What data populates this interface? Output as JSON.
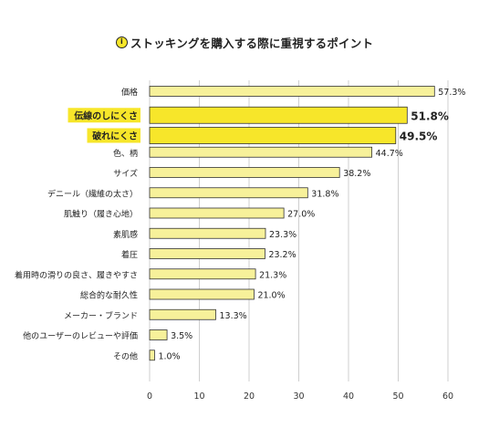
{
  "title": {
    "badge": "i",
    "text": "ストッキングを購入する際に重視するポイント"
  },
  "colors": {
    "bar_fill": "#f7f19a",
    "bar_highlight_fill": "#f7e62a",
    "bar_stroke": "#333333",
    "label_highlight_bg": "#f7e62a",
    "grid": "#cfcfcf"
  },
  "chart_data": {
    "type": "bar",
    "orientation": "horizontal",
    "title": "ストッキングを購入する際に重視するポイント",
    "xlabel": "",
    "ylabel": "",
    "xlim": [
      0,
      60
    ],
    "x_ticks": [
      0,
      10,
      20,
      30,
      40,
      50,
      60
    ],
    "grid": true,
    "unit": "%",
    "categories": [
      "価格",
      "伝線のしにくさ",
      "破れにくさ",
      "色、柄",
      "サイズ",
      "デニール（繊維の太さ）",
      "肌触り（履き心地）",
      "素肌感",
      "着圧",
      "着用時の滑りの良さ、履きやすさ",
      "総合的な耐久性",
      "メーカー・ブランド",
      "他のユーザーのレビューや評価",
      "その他"
    ],
    "values": [
      57.3,
      51.8,
      49.5,
      44.7,
      38.2,
      31.8,
      27.0,
      23.3,
      23.2,
      21.3,
      21.0,
      13.3,
      3.5,
      1.0
    ],
    "value_labels": [
      "57.3%",
      "51.8%",
      "49.5%",
      "44.7%",
      "38.2%",
      "31.8%",
      "27.0%",
      "23.3%",
      "23.2%",
      "21.3%",
      "21.0%",
      "13.3%",
      "3.5%",
      "1.0%"
    ],
    "highlighted": [
      false,
      true,
      true,
      false,
      false,
      false,
      false,
      false,
      false,
      false,
      false,
      false,
      false,
      false
    ]
  }
}
